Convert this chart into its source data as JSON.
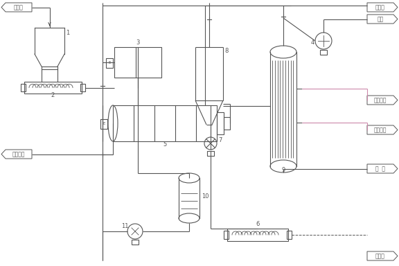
{
  "bg_color": "#ffffff",
  "line_color": "#555555",
  "pink_color": "#cc88aa",
  "green_color": "#55aa55",
  "labels": {
    "wet_sludge": "湿污泥",
    "saturated_steam": "饱和蒸汽",
    "condensate": "凝结水",
    "tail_gas": "尾气",
    "cooling_return": "冷却回水",
    "cooling_inlet": "冷却进水",
    "sewage": "污  水",
    "dry_sludge": "干污泥"
  },
  "numbers": [
    "1",
    "2",
    "3",
    "4",
    "5",
    "6",
    "7",
    "8",
    "9",
    "10",
    "11"
  ]
}
